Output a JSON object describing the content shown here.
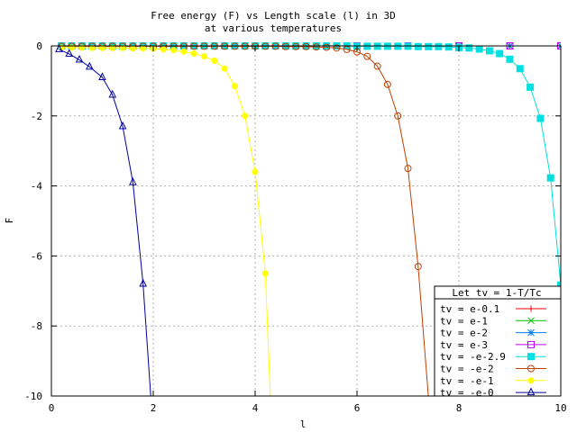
{
  "chart_data": {
    "type": "line",
    "title": "Free energy (F) vs Length scale (l) in 3D",
    "subtitle": "at various temperatures",
    "xlabel": "l",
    "ylabel": "F",
    "xlim": [
      0,
      10
    ],
    "ylim": [
      -10,
      0
    ],
    "xticks": [
      "0",
      "2",
      "4",
      "6",
      "8",
      "10"
    ],
    "yticks": [
      "0",
      "-2",
      "-4",
      "-6",
      "-8",
      "-10"
    ],
    "grid": true,
    "legend_title": "Let tv = 1-T/Tc",
    "legend_position": "bottom-right",
    "series": [
      {
        "name": "tv = e-0.1",
        "color": "#ff0000",
        "marker": "plus",
        "x": [
          0.2,
          0.4,
          0.6,
          0.8,
          1,
          2,
          3,
          4,
          5,
          6,
          7,
          8,
          9,
          10
        ],
        "y": [
          0,
          0,
          0,
          0,
          0,
          0,
          0,
          0,
          0,
          0,
          0,
          0,
          0,
          0
        ]
      },
      {
        "name": "tv = e-1",
        "color": "#00c000",
        "marker": "cross",
        "x": [
          0.2,
          0.4,
          0.6,
          0.8,
          1,
          2,
          3,
          4,
          5,
          6,
          7,
          8,
          9,
          10
        ],
        "y": [
          0,
          0,
          0,
          0,
          0,
          0,
          0,
          0,
          0,
          0,
          0,
          0,
          0,
          0
        ]
      },
      {
        "name": "tv = e-2",
        "color": "#0080ff",
        "marker": "star",
        "x": [
          0.2,
          0.4,
          0.6,
          0.8,
          1,
          2,
          3,
          4,
          5,
          6,
          7,
          8,
          9,
          10
        ],
        "y": [
          0,
          0,
          0,
          0,
          0,
          0,
          0,
          0,
          0,
          0,
          0,
          0,
          0,
          0
        ]
      },
      {
        "name": "tv = e-3",
        "color": "#c000ff",
        "marker": "square-open",
        "x": [
          0.2,
          0.4,
          0.6,
          0.8,
          1,
          2,
          3,
          4,
          5,
          6,
          7,
          8,
          9,
          10
        ],
        "y": [
          0,
          0,
          0,
          0,
          0,
          0,
          0,
          0,
          0,
          0,
          0,
          0,
          0,
          0
        ]
      },
      {
        "name": "tv = -e-2.9",
        "color": "#00e0e0",
        "marker": "square-filled",
        "x": [
          0.2,
          0.4,
          0.6,
          0.8,
          1.0,
          1.2,
          1.4,
          1.6,
          1.8,
          2.0,
          2.2,
          2.4,
          2.6,
          2.8,
          3.0,
          3.2,
          3.4,
          3.6,
          3.8,
          4.0,
          4.2,
          4.4,
          4.6,
          4.8,
          5.0,
          5.2,
          5.4,
          5.6,
          5.8,
          6.0,
          6.2,
          6.4,
          6.6,
          6.8,
          7.0,
          7.2,
          7.4,
          7.6,
          7.8,
          8.0,
          8.2,
          8.4,
          8.6,
          8.8,
          9.0,
          9.2,
          9.4,
          9.6,
          9.8,
          10.0
        ],
        "y": [
          0,
          0,
          0,
          0,
          0,
          0,
          0,
          0,
          0,
          0,
          0,
          0,
          0,
          0,
          0,
          0,
          0,
          0,
          0,
          0,
          0,
          0,
          0,
          0,
          0,
          0,
          0,
          0,
          0,
          -0.01,
          -0.01,
          -0.01,
          -0.01,
          -0.01,
          -0.01,
          -0.02,
          -0.02,
          -0.02,
          -0.03,
          -0.05,
          -0.06,
          -0.09,
          -0.14,
          -0.22,
          -0.38,
          -0.65,
          -1.18,
          -2.07,
          -3.77,
          -6.83
        ]
      },
      {
        "name": "tv = -e-2",
        "color": "#c04000",
        "marker": "circle-open",
        "x": [
          0.2,
          0.4,
          0.6,
          0.8,
          1.0,
          1.2,
          1.4,
          1.6,
          1.8,
          2.0,
          2.2,
          2.4,
          2.6,
          2.8,
          3.0,
          3.2,
          3.4,
          3.6,
          3.8,
          4.0,
          4.2,
          4.4,
          4.6,
          4.8,
          5.0,
          5.2,
          5.4,
          5.6,
          5.8,
          6.0,
          6.2,
          6.4,
          6.6,
          6.8,
          7.0,
          7.2,
          7.4
        ],
        "y": [
          -0.01,
          -0.01,
          -0.01,
          -0.01,
          -0.01,
          -0.01,
          -0.01,
          -0.01,
          -0.01,
          -0.01,
          -0.01,
          -0.01,
          -0.01,
          -0.01,
          -0.01,
          -0.01,
          -0.01,
          -0.01,
          -0.01,
          -0.01,
          -0.01,
          -0.01,
          -0.02,
          -0.02,
          -0.02,
          -0.03,
          -0.04,
          -0.06,
          -0.1,
          -0.17,
          -0.3,
          -0.58,
          -1.1,
          -2.0,
          -3.5,
          -6.3,
          -10
        ]
      },
      {
        "name": "tv = -e-1",
        "color": "#ffff00",
        "marker": "circle-filled",
        "x": [
          0.2,
          0.4,
          0.6,
          0.8,
          1.0,
          1.2,
          1.4,
          1.6,
          1.8,
          2.0,
          2.2,
          2.4,
          2.6,
          2.8,
          3.0,
          3.2,
          3.4,
          3.6,
          3.8,
          4.0,
          4.2,
          4.3
        ],
        "y": [
          -0.05,
          -0.05,
          -0.05,
          -0.06,
          -0.06,
          -0.06,
          -0.06,
          -0.07,
          -0.07,
          -0.08,
          -0.1,
          -0.12,
          -0.16,
          -0.22,
          -0.3,
          -0.42,
          -0.65,
          -1.15,
          -2.0,
          -3.6,
          -6.5,
          -10
        ]
      },
      {
        "name": "tv = -e-0",
        "color": "#0000a0",
        "marker": "triangle-open",
        "x": [
          0.15,
          0.35,
          0.55,
          0.75,
          1.0,
          1.2,
          1.4,
          1.6,
          1.8,
          1.95
        ],
        "y": [
          -0.1,
          -0.23,
          -0.4,
          -0.6,
          -0.9,
          -1.4,
          -2.3,
          -3.9,
          -6.8,
          -10
        ]
      }
    ]
  }
}
